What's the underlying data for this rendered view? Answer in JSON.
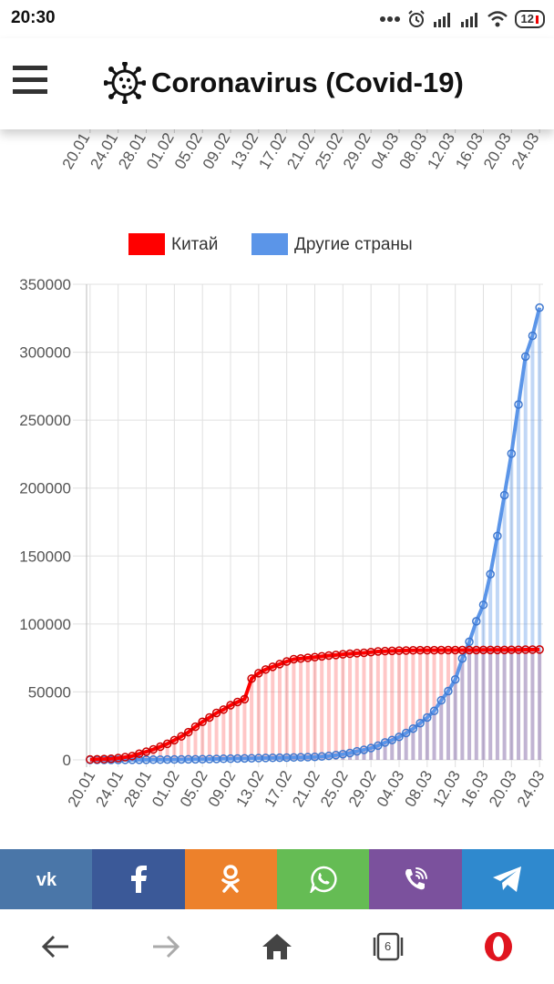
{
  "status": {
    "time": "20:30",
    "battery": "12",
    "icons": [
      "more-icon",
      "alarm-icon",
      "signal-icon",
      "signal-icon",
      "wifi-icon",
      "battery-icon"
    ]
  },
  "app": {
    "title": "Coronavirus (Covid-19)",
    "menu_icon": "hamburger-menu-icon",
    "logo_icon": "virus-icon"
  },
  "top_axis_ticks": [
    "20.01",
    "24.01",
    "28.01",
    "01.02",
    "05.02",
    "09.02",
    "13.02",
    "17.02",
    "21.02",
    "25.02",
    "29.02",
    "04.03",
    "08.03",
    "12.03",
    "16.03",
    "20.03",
    "24.03"
  ],
  "colors": {
    "china": "#ff0000",
    "other": "#5b95e8"
  },
  "chart_data": {
    "type": "line",
    "legend_position": "top",
    "grid": true,
    "ylim": [
      0,
      350000
    ],
    "yticks": [
      0,
      50000,
      100000,
      150000,
      200000,
      250000,
      300000,
      350000
    ],
    "ytick_labels": [
      "0",
      "50000",
      "100000",
      "150000",
      "200000",
      "250000",
      "300000",
      "350000"
    ],
    "x_tick_labels": [
      "20.01",
      "24.01",
      "28.01",
      "01.02",
      "05.02",
      "09.02",
      "13.02",
      "17.02",
      "21.02",
      "25.02",
      "29.02",
      "04.03",
      "08.03",
      "12.03",
      "16.03",
      "20.03",
      "24.03"
    ],
    "x": [
      "20.01",
      "21.01",
      "22.01",
      "23.01",
      "24.01",
      "25.01",
      "26.01",
      "27.01",
      "28.01",
      "29.01",
      "30.01",
      "31.01",
      "01.02",
      "02.02",
      "03.02",
      "04.02",
      "05.02",
      "06.02",
      "07.02",
      "08.02",
      "09.02",
      "10.02",
      "11.02",
      "12.02",
      "13.02",
      "14.02",
      "15.02",
      "16.02",
      "17.02",
      "18.02",
      "19.02",
      "20.02",
      "21.02",
      "22.02",
      "23.02",
      "24.02",
      "25.02",
      "26.02",
      "27.02",
      "28.02",
      "29.02",
      "01.03",
      "02.03",
      "03.03",
      "04.03",
      "05.03",
      "06.03",
      "07.03",
      "08.03",
      "09.03",
      "10.03",
      "11.03",
      "12.03",
      "13.03",
      "14.03",
      "15.03",
      "16.03",
      "17.03",
      "18.03",
      "19.03",
      "20.03",
      "21.03",
      "22.03",
      "23.03",
      "24.03"
    ],
    "series": [
      {
        "name": "Китай",
        "values": [
          300,
          440,
          570,
          830,
          1300,
          2000,
          2800,
          4500,
          6000,
          7700,
          9700,
          11800,
          14500,
          17300,
          20400,
          24400,
          28000,
          31200,
          34500,
          37000,
          40200,
          42600,
          44700,
          59800,
          63800,
          66500,
          68500,
          70500,
          72400,
          74100,
          74600,
          75100,
          75600,
          76200,
          76800,
          77200,
          77700,
          78100,
          78500,
          78800,
          79300,
          79800,
          80000,
          80200,
          80400,
          80500,
          80600,
          80700,
          80700,
          80700,
          80800,
          80800,
          80800,
          80800,
          80800,
          80800,
          80900,
          80900,
          80900,
          80900,
          81000,
          81000,
          81100,
          81100,
          81200
        ]
      },
      {
        "name": "Другие страны",
        "values": [
          0,
          10,
          10,
          20,
          30,
          40,
          60,
          80,
          100,
          150,
          200,
          250,
          300,
          350,
          400,
          450,
          500,
          600,
          700,
          800,
          900,
          1000,
          1100,
          1200,
          1300,
          1400,
          1500,
          1600,
          1700,
          1800,
          1900,
          2000,
          2200,
          2500,
          2900,
          3500,
          4200,
          5000,
          6300,
          7400,
          8700,
          10500,
          12800,
          14600,
          16900,
          19800,
          23000,
          27000,
          31200,
          36000,
          43800,
          50600,
          59200,
          74600,
          86900,
          102000,
          114100,
          136700,
          164800,
          194800,
          225400,
          261500,
          296800,
          312100,
          332800
        ]
      }
    ]
  },
  "share": [
    {
      "name": "vk-share-button",
      "icon": "vk-icon",
      "color": "#4a76a8"
    },
    {
      "name": "facebook-share-button",
      "icon": "facebook-icon",
      "color": "#3b5998"
    },
    {
      "name": "odnoklassniki-share-button",
      "icon": "odnoklassniki-icon",
      "color": "#ed812b"
    },
    {
      "name": "whatsapp-share-button",
      "icon": "whatsapp-icon",
      "color": "#65bc54"
    },
    {
      "name": "viber-share-button",
      "icon": "viber-icon",
      "color": "#7b519d"
    },
    {
      "name": "telegram-share-button",
      "icon": "telegram-icon",
      "color": "#2f89ce"
    }
  ],
  "nav": {
    "tab_count": "6",
    "buttons": [
      "back-arrow-icon",
      "forward-arrow-icon",
      "home-icon",
      "tabs-icon",
      "opera-icon"
    ]
  }
}
